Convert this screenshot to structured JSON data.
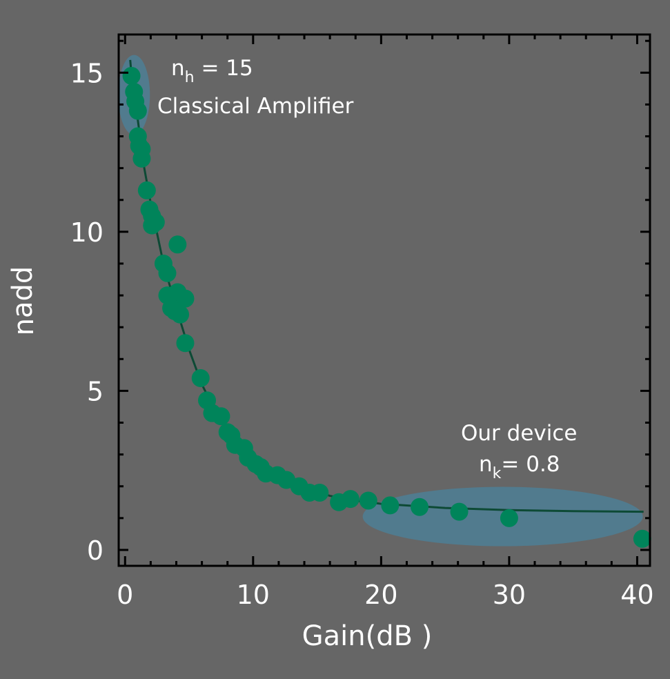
{
  "chart_data": {
    "type": "scatter",
    "xlabel": "Gain(dB )",
    "ylabel_main": "n",
    "ylabel_sub": "add",
    "xlim": [
      -0.5,
      41
    ],
    "ylim": [
      -0.5,
      16.2
    ],
    "x_ticks": [
      "0",
      "10",
      "20",
      "30",
      "40"
    ],
    "x_tick_values": [
      0,
      10,
      20,
      30,
      40
    ],
    "y_ticks": [
      "0",
      "5",
      "10",
      "15"
    ],
    "y_tick_values": [
      0,
      5,
      10,
      15
    ],
    "grid": false,
    "series": [
      {
        "points": [
          [
            0.5,
            14.9
          ],
          [
            0.7,
            14.4
          ],
          [
            0.8,
            14.1
          ],
          [
            1.0,
            13.8
          ],
          [
            1.0,
            13.0
          ],
          [
            1.1,
            12.7
          ],
          [
            1.3,
            12.6
          ],
          [
            1.3,
            12.3
          ],
          [
            1.7,
            11.3
          ],
          [
            1.9,
            10.7
          ],
          [
            2.1,
            10.5
          ],
          [
            2.1,
            10.2
          ],
          [
            2.4,
            10.3
          ],
          [
            4.1,
            9.6
          ],
          [
            3.0,
            9.0
          ],
          [
            3.3,
            8.7
          ],
          [
            3.3,
            8.0
          ],
          [
            4.1,
            8.1
          ],
          [
            4.7,
            7.9
          ],
          [
            3.6,
            7.6
          ],
          [
            4.3,
            7.4
          ],
          [
            3.9,
            7.5
          ],
          [
            4.7,
            6.5
          ],
          [
            5.9,
            5.4
          ],
          [
            6.4,
            4.7
          ],
          [
            6.8,
            4.3
          ],
          [
            7.5,
            4.2
          ],
          [
            8.0,
            3.7
          ],
          [
            8.3,
            3.6
          ],
          [
            8.6,
            3.3
          ],
          [
            9.3,
            3.2
          ],
          [
            9.6,
            2.9
          ],
          [
            10.2,
            2.7
          ],
          [
            10.6,
            2.6
          ],
          [
            11.0,
            2.4
          ],
          [
            11.9,
            2.35
          ],
          [
            12.6,
            2.2
          ],
          [
            13.6,
            2.0
          ],
          [
            14.4,
            1.8
          ],
          [
            15.2,
            1.8
          ],
          [
            16.7,
            1.5
          ],
          [
            17.6,
            1.6
          ],
          [
            19.0,
            1.55
          ],
          [
            20.7,
            1.4
          ],
          [
            23.0,
            1.35
          ],
          [
            26.1,
            1.2
          ],
          [
            30.0,
            1.0
          ],
          [
            40.4,
            0.35
          ]
        ],
        "color": "#00845a"
      }
    ],
    "fit_curve": {
      "color": "#0d4a35",
      "points": [
        [
          0.4,
          15.4
        ],
        [
          0.6,
          14.5
        ],
        [
          1.0,
          13.5
        ],
        [
          1.5,
          12.0
        ],
        [
          2.0,
          10.9
        ],
        [
          3.0,
          9.0
        ],
        [
          4.0,
          7.6
        ],
        [
          5.0,
          6.3
        ],
        [
          6.0,
          5.2
        ],
        [
          7.0,
          4.4
        ],
        [
          8.0,
          3.8
        ],
        [
          9.0,
          3.3
        ],
        [
          10.0,
          2.9
        ],
        [
          12.0,
          2.3
        ],
        [
          14.0,
          1.95
        ],
        [
          16.0,
          1.7
        ],
        [
          18.0,
          1.55
        ],
        [
          20.0,
          1.45
        ],
        [
          25.0,
          1.32
        ],
        [
          30.0,
          1.25
        ],
        [
          35.0,
          1.22
        ],
        [
          40.5,
          1.2
        ]
      ]
    },
    "highlight_color": "#4f7d92",
    "annotations": [
      {
        "main": "n",
        "sub": "h",
        "rest": " = 15",
        "line2": "Classical Amplifier"
      },
      {
        "line1": "Our device",
        "main": "n",
        "sub": "k",
        "rest": "= 0.8"
      }
    ]
  }
}
